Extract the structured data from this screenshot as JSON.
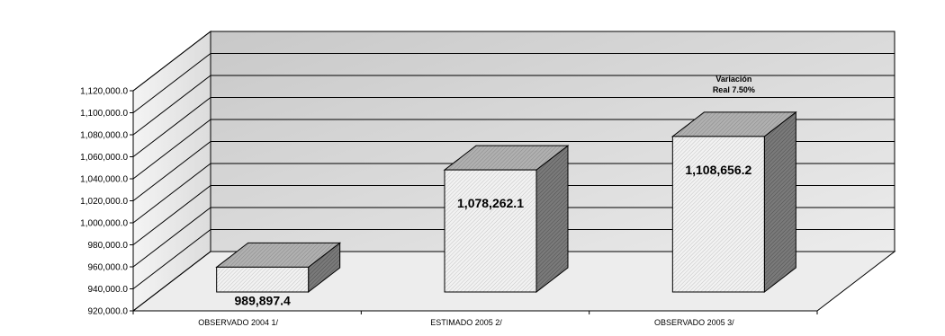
{
  "chart_data": {
    "type": "bar",
    "three_d": true,
    "title": "",
    "xlabel": "",
    "ylabel": "",
    "categories": [
      "OBSERVADO 2004 1/",
      "ESTIMADO  2005 2/",
      "OBSERVADO 2005  3/"
    ],
    "values": [
      989897.4,
      1078262.1,
      1108656.2
    ],
    "data_labels": [
      "989,897.4",
      "1,078,262.1",
      "1,108,656.2"
    ],
    "ylim": [
      920000,
      1120000
    ],
    "yticks": [
      920000,
      940000,
      960000,
      980000,
      1000000,
      1020000,
      1040000,
      1060000,
      1080000,
      1100000,
      1120000
    ],
    "ytick_labels": [
      "920,000.0",
      "940,000.0",
      "960,000.0",
      "980,000.0",
      "1,000,000.0",
      "1,020,000.0",
      "1,040,000.0",
      "1,060,000.0",
      "1,080,000.0",
      "1,100,000.0",
      "1,120,000.0"
    ],
    "grid": true,
    "legend": "none",
    "annotation": {
      "line1": "Variación",
      "line2": "Real 7.50%"
    },
    "colors": {
      "bar_front": "#f2f2f2",
      "bar_top": "#a6a6a6",
      "bar_side": "#6e6e6e",
      "back_wall": "#d9d9d9",
      "side_wall": "#ececec",
      "floor": "#ececec",
      "grid": "#000000"
    }
  }
}
